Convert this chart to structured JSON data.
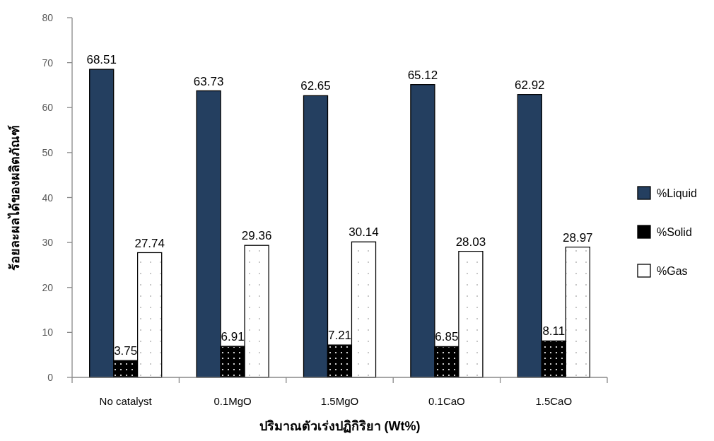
{
  "chart_data": {
    "type": "bar",
    "xlabel": "ปริมาณตัวเร่งปฏิกิริยา (Wt%)",
    "ylabel": "ร้อยละผลได้ของผลิตภัณฑ์",
    "categories": [
      "No catalyst",
      "0.1MgO",
      "1.5MgO",
      "0.1CaO",
      "1.5CaO"
    ],
    "series": [
      {
        "name": "%Liquid",
        "color": "#243f60",
        "values": [
          68.51,
          63.73,
          62.65,
          65.12,
          62.92
        ]
      },
      {
        "name": "%Solid",
        "color": "#000000",
        "values": [
          3.75,
          6.91,
          7.21,
          6.85,
          8.11
        ]
      },
      {
        "name": "%Gas",
        "color": "#ffffff",
        "values": [
          27.74,
          29.36,
          30.14,
          28.03,
          28.97
        ]
      }
    ],
    "ylim": [
      0,
      80
    ],
    "yticks": [
      0,
      10,
      20,
      30,
      40,
      50,
      60,
      70,
      80
    ],
    "data_labels": true,
    "legend": "right",
    "grid": false
  }
}
